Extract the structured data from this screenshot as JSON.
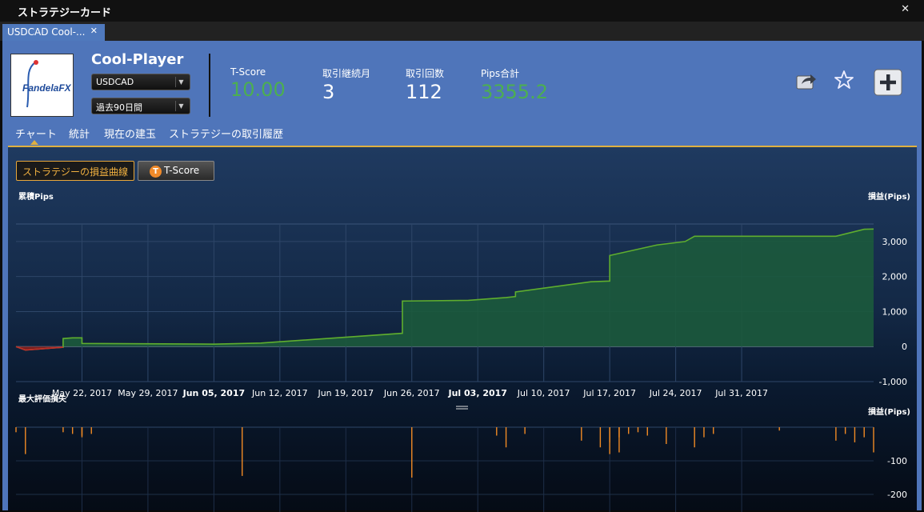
{
  "window": {
    "title": "ストラテジーカード",
    "close_glyph": "✕"
  },
  "tab": {
    "label": "USDCAD Cool-...",
    "close_glyph": "✕"
  },
  "header": {
    "name": "Cool-Player",
    "logo_text": "FandelaFX",
    "symbol": "USDCAD",
    "period": "過去90日間",
    "stats": [
      {
        "label": "T-Score",
        "value": "10.00",
        "color": "#4caf50"
      },
      {
        "label": "取引継続月",
        "value": "3",
        "color": "#ffffff"
      },
      {
        "label": "取引回数",
        "value": "112",
        "color": "#ffffff"
      },
      {
        "label": "Pips合計",
        "value": "3355.2",
        "color": "#4caf50"
      }
    ],
    "icons": [
      "share-icon",
      "star-icon",
      "add-icon"
    ]
  },
  "subtabs": [
    "チャート",
    "統計",
    "現在の建玉",
    "ストラテジーの取引履歴"
  ],
  "chart_buttons": {
    "curve": "ストラテジーの損益曲線",
    "tscore": "T-Score",
    "tscore_icon": "T"
  },
  "chart_data": [
    {
      "type": "area",
      "ylabel_left": "累積Pips",
      "ylabel_right": "損益(Pips)",
      "ylim": [
        -1000,
        3500
      ],
      "yticks": [
        3000,
        2000,
        1000,
        0,
        -1000
      ],
      "ytick_labels": [
        "3,000",
        "2,000",
        "1,000",
        "0",
        "-1,000"
      ],
      "xlim": [
        "2017-05-15",
        "2017-08-14"
      ],
      "xticks": [
        "2017-05-22",
        "2017-05-29",
        "2017-06-05",
        "2017-06-12",
        "2017-06-19",
        "2017-06-26",
        "2017-07-03",
        "2017-07-10",
        "2017-07-17",
        "2017-07-24",
        "2017-07-31"
      ],
      "xtick_labels": [
        "May 22, 2017",
        "May 29, 2017",
        "Jun 05, 2017",
        "Jun 12, 2017",
        "Jun 19, 2017",
        "Jun 26, 2017",
        "Jul 03, 2017",
        "Jul 10, 2017",
        "Jul 17, 2017",
        "Jul 24, 2017",
        "Jul 31, 2017"
      ],
      "xtick_bold": [
        false,
        false,
        true,
        false,
        false,
        false,
        true,
        false,
        false,
        false,
        false
      ],
      "points": [
        [
          "2017-05-15",
          0
        ],
        [
          "2017-05-16",
          -100
        ],
        [
          "2017-05-19",
          -40
        ],
        [
          "2017-05-20",
          -20
        ],
        [
          "2017-05-20",
          230
        ],
        [
          "2017-05-21",
          250
        ],
        [
          "2017-05-22",
          250
        ],
        [
          "2017-05-22",
          90
        ],
        [
          "2017-06-05",
          70
        ],
        [
          "2017-06-10",
          100
        ],
        [
          "2017-06-25",
          380
        ],
        [
          "2017-06-25",
          1300
        ],
        [
          "2017-07-02",
          1320
        ],
        [
          "2017-07-06",
          1400
        ],
        [
          "2017-07-07",
          1430
        ],
        [
          "2017-07-07",
          1560
        ],
        [
          "2017-07-15",
          1850
        ],
        [
          "2017-07-17",
          1870
        ],
        [
          "2017-07-17",
          2600
        ],
        [
          "2017-07-22",
          2900
        ],
        [
          "2017-07-25",
          3000
        ],
        [
          "2017-07-26",
          3150
        ],
        [
          "2017-08-10",
          3150
        ],
        [
          "2017-08-13",
          3350
        ],
        [
          "2017-08-14",
          3355
        ]
      ]
    },
    {
      "type": "bar",
      "ylabel_left": "最大評価損失",
      "ylabel_right": "損益(Pips)",
      "ylim": [
        -200,
        0
      ],
      "yticks": [
        -100,
        -200
      ],
      "ytick_labels": [
        "-100",
        "-200"
      ],
      "bars": [
        [
          "2017-05-15",
          -15
        ],
        [
          "2017-05-16",
          -80
        ],
        [
          "2017-05-20",
          -15
        ],
        [
          "2017-05-21",
          -20
        ],
        [
          "2017-05-22",
          -25
        ],
        [
          "2017-05-22",
          -30
        ],
        [
          "2017-05-23",
          -20
        ],
        [
          "2017-06-08",
          -145
        ],
        [
          "2017-06-26",
          -150
        ],
        [
          "2017-07-05",
          -25
        ],
        [
          "2017-07-06",
          -60
        ],
        [
          "2017-07-08",
          -20
        ],
        [
          "2017-07-14",
          -40
        ],
        [
          "2017-07-16",
          -60
        ],
        [
          "2017-07-17",
          -80
        ],
        [
          "2017-07-17",
          -45
        ],
        [
          "2017-07-18",
          -75
        ],
        [
          "2017-07-18",
          -30
        ],
        [
          "2017-07-19",
          -20
        ],
        [
          "2017-07-20",
          -15
        ],
        [
          "2017-07-21",
          -25
        ],
        [
          "2017-07-23",
          -50
        ],
        [
          "2017-07-26",
          -60
        ],
        [
          "2017-07-27",
          -30
        ],
        [
          "2017-07-28",
          -20
        ],
        [
          "2017-08-04",
          -10
        ],
        [
          "2017-08-10",
          -40
        ],
        [
          "2017-08-11",
          -20
        ],
        [
          "2017-08-12",
          -45
        ],
        [
          "2017-08-13",
          -30
        ],
        [
          "2017-08-14",
          -75
        ]
      ]
    }
  ]
}
